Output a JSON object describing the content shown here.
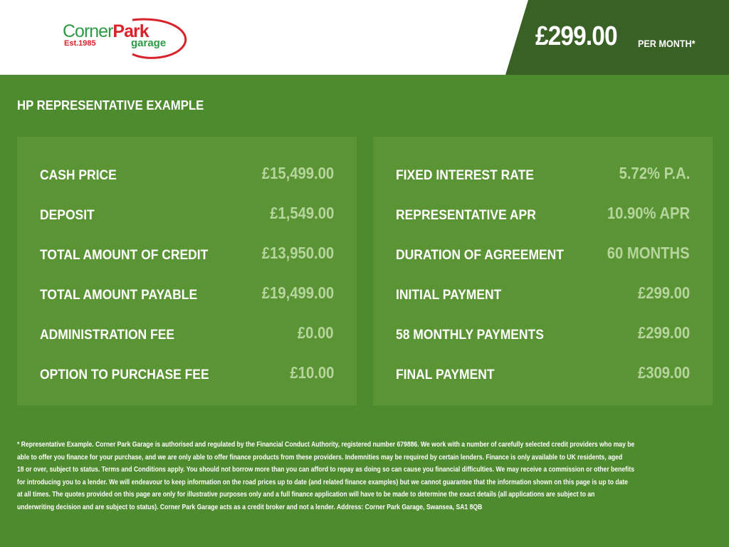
{
  "brand": {
    "name_part1": "Corner",
    "name_part2": "Park",
    "established": "Est.1985",
    "subtitle": "garage",
    "colors": {
      "green": "#2f9a45",
      "red": "#d9232b"
    }
  },
  "header": {
    "price": "£299.00",
    "price_suffix": "PER MONTH*"
  },
  "section_title": "HP REPRESENTATIVE EXAMPLE",
  "left_panel": [
    {
      "label": "CASH PRICE",
      "value": "£15,499.00"
    },
    {
      "label": "DEPOSIT",
      "value": "£1,549.00"
    },
    {
      "label": "TOTAL AMOUNT OF CREDIT",
      "value": "£13,950.00"
    },
    {
      "label": "TOTAL AMOUNT PAYABLE",
      "value": "£19,499.00"
    },
    {
      "label": "ADMINISTRATION FEE",
      "value": "£0.00"
    },
    {
      "label": "OPTION TO PURCHASE FEE",
      "value": "£10.00"
    }
  ],
  "right_panel": [
    {
      "label": "FIXED INTEREST RATE",
      "value": "5.72% P.A."
    },
    {
      "label": "REPRESENTATIVE APR",
      "value": "10.90% APR"
    },
    {
      "label": "DURATION OF AGREEMENT",
      "value": "60 MONTHS"
    },
    {
      "label": "INITIAL PAYMENT",
      "value": "£299.00"
    },
    {
      "label": "58 MONTHLY PAYMENTS",
      "value": "£299.00"
    },
    {
      "label": "FINAL PAYMENT",
      "value": "£309.00"
    }
  ],
  "disclaimer_lines": [
    "* Representative Example. Corner Park Garage is authorised and regulated by the Financial Conduct Authority, registered number 679886. We work with a number of carefully selected credit providers who may be",
    "able to offer you finance for your purchase, and we are only able to offer finance products from these providers. Indemnities may be required by certain lenders. Finance is only available to UK residents, aged",
    "18 or over, subject to status. Terms and Conditions apply. You should not borrow more than you can afford to repay as doing so can cause you financial difficulties. We may receive a commission or other benefits",
    "for introducing you to a lender. We will endeavour to keep information on the road prices up to date (and related finance examples) but we cannot guarantee that the information shown on this page is up to date",
    "at all times. The quotes provided on this page are only for illustrative purposes only and a full finance application will have to be made to determine the exact details (all applications are subject to an",
    "underwriting decision and are subject to status). Corner Park Garage acts as a credit broker and not a lender. Address: Corner Park Garage, Swansea, SA1 8QB"
  ]
}
